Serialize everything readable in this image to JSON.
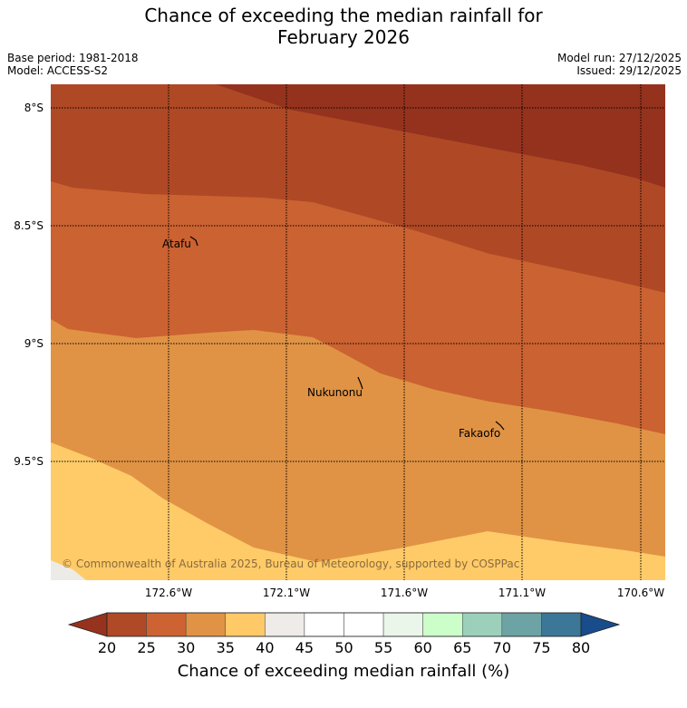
{
  "title": {
    "line1": "Chance of exceeding the median rainfall for",
    "line2": "February 2026"
  },
  "meta": {
    "base_period": "Base period: 1981-2018",
    "model": "Model: ACCESS-S2",
    "model_run": "Model run: 27/12/2025",
    "issued": "Issued: 29/12/2025"
  },
  "axes": {
    "lat_labels": [
      "8°S",
      "8.5°S",
      "9°S",
      "9.5°S"
    ],
    "lon_labels": [
      "172.6°W",
      "172.1°W",
      "171.6°W",
      "171.1°W",
      "170.6°W"
    ]
  },
  "places": {
    "atafu": "Atafu",
    "nukunonu": "Nukunonu",
    "fakaofo": "Fakaofo"
  },
  "copyright": "© Commonwealth of Australia 2025, Bureau of Meteorology, supported by COSPPac",
  "colorbar": {
    "ticks": [
      "20",
      "25",
      "30",
      "35",
      "40",
      "45",
      "50",
      "55",
      "60",
      "65",
      "70",
      "75",
      "80"
    ],
    "colors": [
      "#b04a26",
      "#cd6332",
      "#e09345",
      "#fec966",
      "#eeebe8",
      "#ffffff",
      "#ffffff",
      "#ebf6ea",
      "#ccfec9",
      "#9dd0bb",
      "#6da3a5",
      "#3c7797"
    ],
    "under_color": "#96321d",
    "over_color": "#184c8a",
    "label": "Chance of exceeding median rainfall (%)"
  },
  "bands": {
    "band_lt20": "#95321e",
    "band_20_25": "#af4925",
    "band_25_30": "#cb6231",
    "band_30_35": "#e09345",
    "band_35_40": "#fecb68",
    "band_40_45": "#edebe8"
  }
}
